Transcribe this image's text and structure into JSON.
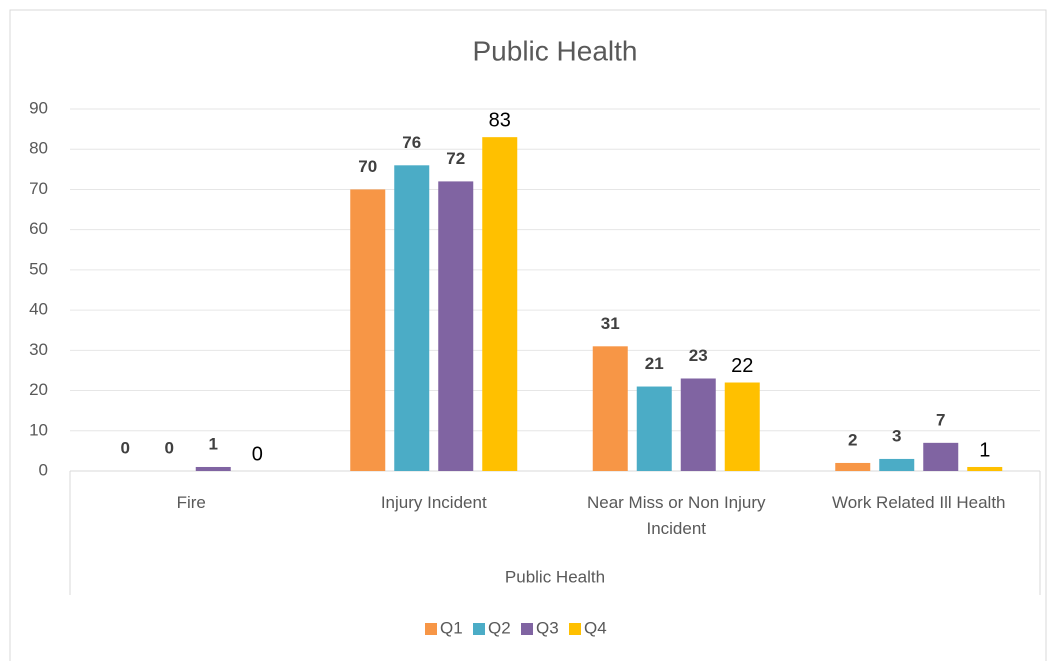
{
  "chart_data": {
    "type": "bar",
    "title": "Public Health",
    "categories": [
      "Fire",
      "Injury Incident",
      "Near Miss or Non Injury Incident",
      "Work Related Ill Health"
    ],
    "x_group_label": "Public Health",
    "series": [
      {
        "name": "Q1",
        "color": "#f79646",
        "values": [
          0,
          70,
          31,
          2
        ]
      },
      {
        "name": "Q2",
        "color": "#4bacc6",
        "values": [
          0,
          76,
          21,
          3
        ]
      },
      {
        "name": "Q3",
        "color": "#8064a2",
        "values": [
          1,
          72,
          23,
          7
        ]
      },
      {
        "name": "Q4",
        "color": "#ffc000",
        "values": [
          0,
          83,
          22,
          1
        ]
      }
    ],
    "ylim": [
      0,
      90
    ],
    "yticks": [
      0,
      10,
      20,
      30,
      40,
      50,
      60,
      70,
      80,
      90
    ],
    "grid": true,
    "legend": "bottom"
  }
}
